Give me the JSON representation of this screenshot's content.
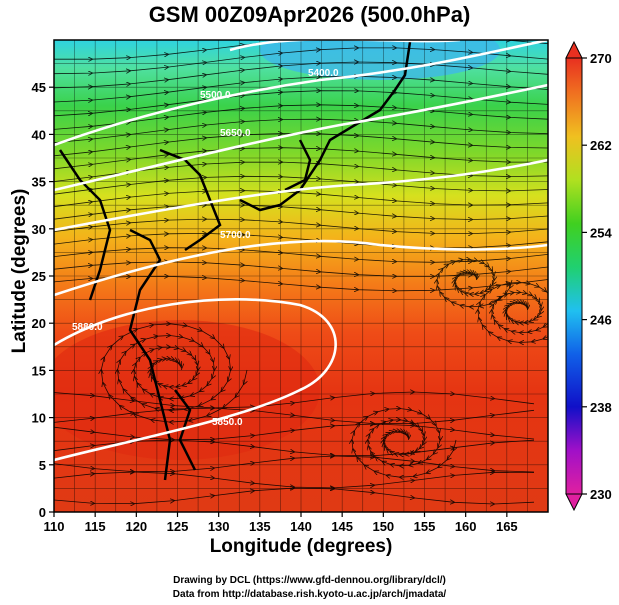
{
  "title": "GSM 00Z09Apr2026 (500.0hPa)",
  "x_axis": {
    "label": "Longitude (degrees)",
    "range": [
      110,
      170
    ],
    "ticks": [
      "110",
      "115",
      "120",
      "125",
      "130",
      "135",
      "140",
      "145",
      "150",
      "155",
      "160",
      "165"
    ]
  },
  "y_axis": {
    "label": "Latitude  (degrees)",
    "range": [
      0,
      50
    ],
    "ticks": [
      "0",
      "5",
      "10",
      "15",
      "20",
      "25",
      "30",
      "35",
      "40",
      "45"
    ]
  },
  "colorbar": {
    "range": [
      230,
      270
    ],
    "ticks": [
      "230",
      "238",
      "246",
      "254",
      "262",
      "270"
    ]
  },
  "contours": [
    {
      "label": "5880.0"
    },
    {
      "label": "5850.0"
    },
    {
      "label": "5700.0"
    },
    {
      "label": "5650.0"
    },
    {
      "label": "5500.0"
    },
    {
      "label": "5400.0"
    }
  ],
  "credits": {
    "line1": "Drawing by DCL (https://www.gfd-dennou.org/library/dcl/)",
    "line2": "Data from http://database.rish.kyoto-u.ac.jp/arch/jmadata/"
  }
}
